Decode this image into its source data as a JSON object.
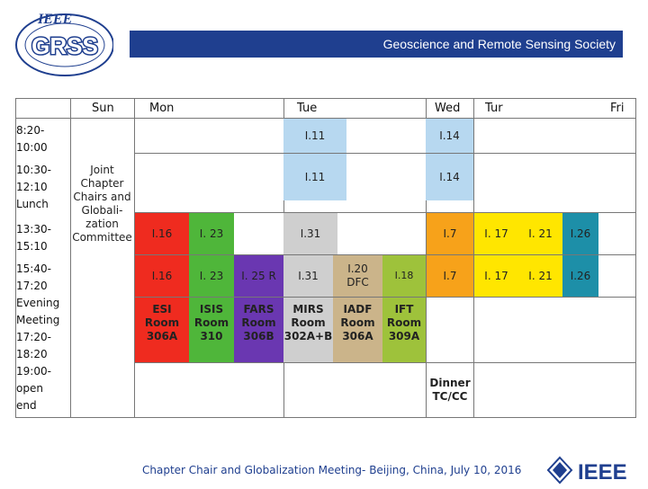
{
  "header": {
    "title": "Geoscience and Remote Sensing Society",
    "logo_text": "GRSS",
    "logo_top": "IEEE"
  },
  "days": [
    "Sun",
    "Mon",
    "Tue",
    "Wed",
    "Tur",
    "Fri"
  ],
  "times": {
    "t1": "8:20-\n10:00",
    "t2": "10:30-\n12:10\nLunch",
    "t3": "13:30-\n15:10",
    "t4": "15:40-\n17:20\nEvening\nMeeting\n17:20-\n18:20\n19:00-\nopen\nend"
  },
  "sunday_block": "Joint\nChapter\nChairs and\nGlobali-\nzation\nCommittee",
  "sessions": {
    "r1_tue": "I.11",
    "r1_wed": "I.14",
    "r2_tue": "I.11",
    "r2_wed": "I.14",
    "r3_mon1": "I.16",
    "r3_mon2": "I. 23",
    "r3_tue": "I.31",
    "r3_wed": "I.7",
    "r3_tur1": "I. 17",
    "r3_tur2": "I. 21",
    "r3_tur3": "I.26",
    "r4_mon1": "I.16",
    "r4_mon2": "I. 23",
    "r4_mon3": "I. 25 R",
    "r4_tue1": "I.31",
    "r4_tue2": "I.20\nDFC",
    "r4_tue3": "I.18",
    "r4_wed": "I.7",
    "r4_tur1": "I. 17",
    "r4_tur2": "I. 21",
    "r4_tur3": "I.26"
  },
  "rooms": {
    "esi": "ESI\nRoom\n306A",
    "isis": "ISIS\nRoom\n310",
    "fars": "FARS\nRoom\n306B",
    "mirs": "MIRS\nRoom\n302A+B",
    "iadf": "IADF\nRoom\n306A",
    "ift": "IFT\nRoom\n309A"
  },
  "dinner": "Dinner\nTC/CC",
  "footer": "Chapter Chair and Globalization Meeting- Beijing, China, July 10, 2016",
  "ieee_logo": "IEEE",
  "colors": {
    "banner": "#1f3f8f",
    "light_blue": "#b7d8f0",
    "red": "#ef2b1f",
    "green": "#4fb63a",
    "purple": "#6a37b1",
    "gray": "#cfcfcf",
    "tan": "#cbb48a",
    "orange": "#f7a21a",
    "yellow": "#ffe600",
    "teal": "#1d8fa8",
    "light_green": "#9ec23b"
  }
}
